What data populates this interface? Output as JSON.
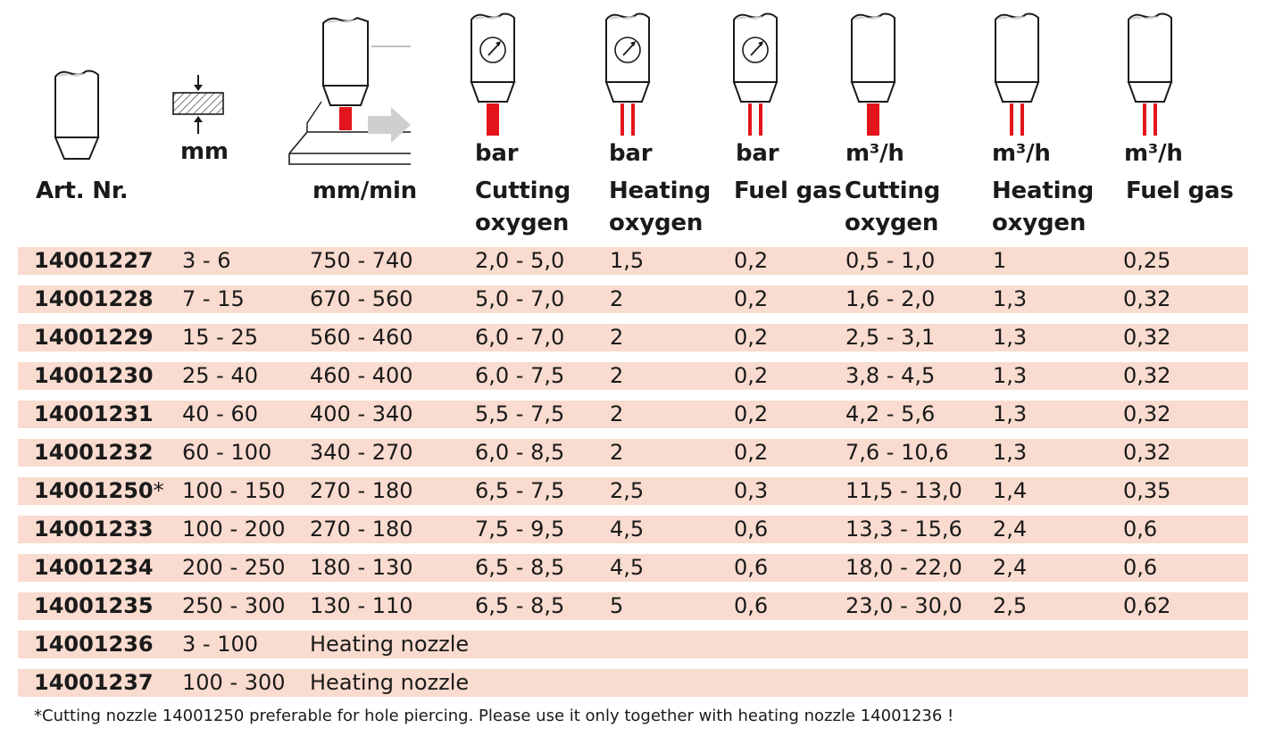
{
  "units": {
    "thickness": "mm",
    "speed": "mm/min",
    "cutting_oxygen_pressure": "bar",
    "heating_oxygen_pressure": "bar",
    "fuel_gas_pressure": "bar",
    "cutting_oxygen_flow": "m³/h",
    "heating_oxygen_flow": "m³/h",
    "fuel_gas_flow": "m³/h"
  },
  "headers": {
    "art_nr": "Art. Nr.",
    "speed": "mm/min",
    "cutting_oxygen_1": [
      "Cutting",
      "oxygen"
    ],
    "heating_oxygen_1": [
      "Heating",
      "oxygen"
    ],
    "fuel_gas_1": "Fuel gas",
    "cutting_oxygen_2": [
      "Cutting",
      "oxygen"
    ],
    "heating_oxygen_2": [
      "Heating",
      "oxygen"
    ],
    "fuel_gas_2": "Fuel gas"
  },
  "icons": [
    "nozzle-icon",
    "material-thickness-icon",
    "cutting-speed-icon",
    "cutting-oxygen-pressure-gauge-icon",
    "heating-oxygen-pressure-gauge-icon",
    "fuel-gas-pressure-gauge-icon",
    "cutting-oxygen-flow-icon",
    "heating-oxygen-flow-icon",
    "fuel-gas-flow-icon"
  ],
  "colors": {
    "row_background": "#f9dbcf",
    "flame_red": "#e3141b"
  },
  "rows": [
    {
      "art": "14001227",
      "mark": "",
      "thickness": "3 - 6",
      "speed": "750 - 740",
      "co_bar": "2,0 - 5,0",
      "ho_bar": "1,5",
      "fg_bar": "0,2",
      "co_flow": "0,5 - 1,0",
      "ho_flow": "1",
      "fg_flow": "0,25"
    },
    {
      "art": "14001228",
      "mark": "",
      "thickness": "7 - 15",
      "speed": "670 - 560",
      "co_bar": "5,0 - 7,0",
      "ho_bar": "2",
      "fg_bar": "0,2",
      "co_flow": "1,6 - 2,0",
      "ho_flow": "1,3",
      "fg_flow": "0,32"
    },
    {
      "art": "14001229",
      "mark": "",
      "thickness": "15 - 25",
      "speed": "560 - 460",
      "co_bar": "6,0 - 7,0",
      "ho_bar": "2",
      "fg_bar": "0,2",
      "co_flow": "2,5 - 3,1",
      "ho_flow": "1,3",
      "fg_flow": "0,32"
    },
    {
      "art": "14001230",
      "mark": "",
      "thickness": "25 - 40",
      "speed": "460 - 400",
      "co_bar": "6,0 - 7,5",
      "ho_bar": "2",
      "fg_bar": "0,2",
      "co_flow": "3,8 - 4,5",
      "ho_flow": "1,3",
      "fg_flow": "0,32"
    },
    {
      "art": "14001231",
      "mark": "",
      "thickness": "40 - 60",
      "speed": "400 - 340",
      "co_bar": "5,5 - 7,5",
      "ho_bar": "2",
      "fg_bar": "0,2",
      "co_flow": "4,2 - 5,6",
      "ho_flow": "1,3",
      "fg_flow": "0,32"
    },
    {
      "art": "14001232",
      "mark": "",
      "thickness": "60 - 100",
      "speed": "340 - 270",
      "co_bar": "6,0 - 8,5",
      "ho_bar": "2",
      "fg_bar": "0,2",
      "co_flow": "7,6 - 10,6",
      "ho_flow": "1,3",
      "fg_flow": "0,32"
    },
    {
      "art": "14001250",
      "mark": "*",
      "thickness": "100 - 150",
      "speed": "270 - 180",
      "co_bar": "6,5 - 7,5",
      "ho_bar": "2,5",
      "fg_bar": "0,3",
      "co_flow": "11,5 - 13,0",
      "ho_flow": "1,4",
      "fg_flow": "0,35"
    },
    {
      "art": "14001233",
      "mark": "",
      "thickness": "100 - 200",
      "speed": "270 - 180",
      "co_bar": "7,5 - 9,5",
      "ho_bar": "4,5",
      "fg_bar": "0,6",
      "co_flow": "13,3 - 15,6",
      "ho_flow": "2,4",
      "fg_flow": "0,6"
    },
    {
      "art": "14001234",
      "mark": "",
      "thickness": "200 - 250",
      "speed": "180 - 130",
      "co_bar": "6,5 - 8,5",
      "ho_bar": "4,5",
      "fg_bar": "0,6",
      "co_flow": "18,0 - 22,0",
      "ho_flow": "2,4",
      "fg_flow": "0,6"
    },
    {
      "art": "14001235",
      "mark": "",
      "thickness": "250 - 300",
      "speed": "130 - 110",
      "co_bar": "6,5 - 8,5",
      "ho_bar": "5",
      "fg_bar": "0,6",
      "co_flow": "23,0 - 30,0",
      "ho_flow": "2,5",
      "fg_flow": "0,62"
    },
    {
      "art": "14001236",
      "mark": "",
      "thickness": "3 - 100",
      "speed": "Heating nozzle",
      "co_bar": "",
      "ho_bar": "",
      "fg_bar": "",
      "co_flow": "",
      "ho_flow": "",
      "fg_flow": ""
    },
    {
      "art": "14001237",
      "mark": "",
      "thickness": "100 - 300",
      "speed": "Heating nozzle",
      "co_bar": "",
      "ho_bar": "",
      "fg_bar": "",
      "co_flow": "",
      "ho_flow": "",
      "fg_flow": ""
    }
  ],
  "footnote": "*Cutting nozzle 14001250 preferable for hole piercing. Please use it only together with heating nozzle 14001236 !"
}
